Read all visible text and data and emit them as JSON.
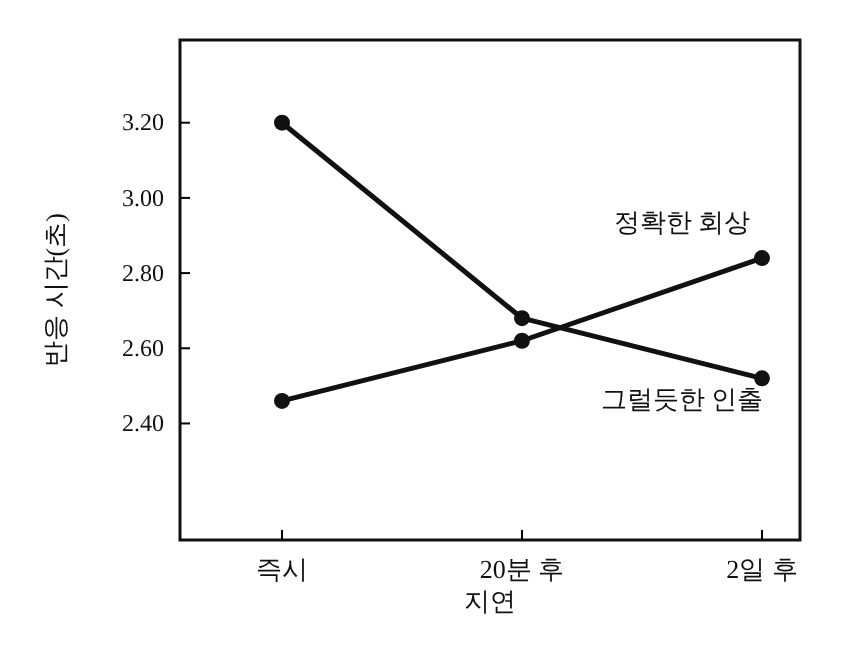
{
  "chart_data": {
    "type": "line",
    "xlabel": "지연",
    "ylabel": "반응 시간(초)",
    "categories": [
      "즉시",
      "20분 후",
      "2일 후"
    ],
    "series": [
      {
        "name": "정확한 회상",
        "color": "#111111",
        "values": [
          2.46,
          2.62,
          2.84
        ]
      },
      {
        "name": "그럴듯한 인출",
        "color": "#111111",
        "values": [
          3.2,
          2.68,
          2.52
        ]
      }
    ],
    "ylim": [
      2.09,
      3.42
    ],
    "yticks": [
      {
        "value": 2.4,
        "label": "2.40"
      },
      {
        "value": 2.6,
        "label": "2.60"
      },
      {
        "value": 2.8,
        "label": "2.80"
      },
      {
        "value": 3.0,
        "label": "3.00"
      },
      {
        "value": 3.2,
        "label": "3.20"
      }
    ],
    "marker": "circle",
    "line_style": "solid",
    "grid": false,
    "legend": false
  }
}
